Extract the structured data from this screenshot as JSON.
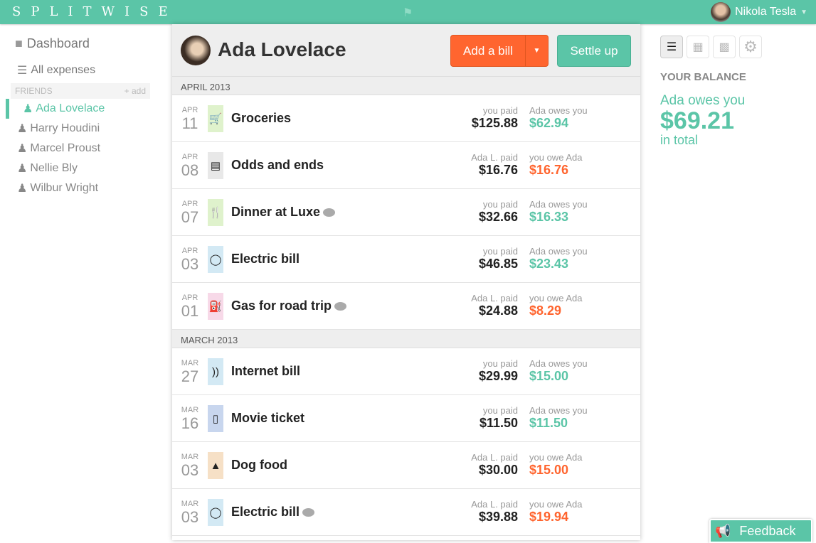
{
  "header": {
    "logo": "SPLITWISE",
    "user": "Nikola Tesla"
  },
  "sidebar": {
    "dashboard": "Dashboard",
    "all_expenses": "All expenses",
    "friends_label": "FRIENDS",
    "add_label": "add",
    "friends": [
      "Ada Lovelace",
      "Harry Houdini",
      "Marcel Proust",
      "Nellie Bly",
      "Wilbur Wright"
    ]
  },
  "main": {
    "title": "Ada Lovelace",
    "add_bill": "Add a bill",
    "settle_up": "Settle up",
    "sections": [
      {
        "label": "APRIL 2013",
        "items": [
          {
            "month": "APR",
            "day": "11",
            "icon": "cart-icon",
            "icon_bg": "#dff2cc",
            "desc": "Groceries",
            "comment": false,
            "payer": "you paid",
            "paid": "$125.88",
            "rel": "Ada owes you",
            "amount": "$62.94",
            "type": "owed"
          },
          {
            "month": "APR",
            "day": "08",
            "icon": "receipt-icon",
            "icon_bg": "#e8e8e8",
            "desc": "Odds and ends",
            "comment": false,
            "payer": "Ada L. paid",
            "paid": "$16.76",
            "rel": "you owe Ada",
            "amount": "$16.76",
            "type": "owe"
          },
          {
            "month": "APR",
            "day": "07",
            "icon": "fork-knife-icon",
            "icon_bg": "#dff2cc",
            "desc": "Dinner at Luxe",
            "comment": true,
            "payer": "you paid",
            "paid": "$32.66",
            "rel": "Ada owes you",
            "amount": "$16.33",
            "type": "owed"
          },
          {
            "month": "APR",
            "day": "03",
            "icon": "lightbulb-icon",
            "icon_bg": "#d3e9f4",
            "desc": "Electric bill",
            "comment": false,
            "payer": "you paid",
            "paid": "$46.85",
            "rel": "Ada owes you",
            "amount": "$23.43",
            "type": "owed"
          },
          {
            "month": "APR",
            "day": "01",
            "icon": "gas-pump-icon",
            "icon_bg": "#f7d9e8",
            "desc": "Gas for road trip",
            "comment": true,
            "payer": "Ada L. paid",
            "paid": "$24.88",
            "rel": "you owe Ada",
            "amount": "$8.29",
            "type": "owe"
          }
        ]
      },
      {
        "label": "MARCH 2013",
        "items": [
          {
            "month": "MAR",
            "day": "27",
            "icon": "wifi-icon",
            "icon_bg": "#d3e9f4",
            "desc": "Internet bill",
            "comment": false,
            "payer": "you paid",
            "paid": "$29.99",
            "rel": "Ada owes you",
            "amount": "$15.00",
            "type": "owed"
          },
          {
            "month": "MAR",
            "day": "16",
            "icon": "ticket-icon",
            "icon_bg": "#c8d6ee",
            "desc": "Movie ticket",
            "comment": false,
            "payer": "you paid",
            "paid": "$11.50",
            "rel": "Ada owes you",
            "amount": "$11.50",
            "type": "owed"
          },
          {
            "month": "MAR",
            "day": "03",
            "icon": "dog-icon",
            "icon_bg": "#f6e0c6",
            "desc": "Dog food",
            "comment": false,
            "payer": "Ada L. paid",
            "paid": "$30.00",
            "rel": "you owe Ada",
            "amount": "$15.00",
            "type": "owe"
          },
          {
            "month": "MAR",
            "day": "03",
            "icon": "lightbulb-icon",
            "icon_bg": "#d3e9f4",
            "desc": "Electric bill",
            "comment": true,
            "payer": "Ada L. paid",
            "paid": "$39.88",
            "rel": "you owe Ada",
            "amount": "$19.94",
            "type": "owe"
          }
        ]
      }
    ]
  },
  "balance": {
    "heading": "YOUR BALANCE",
    "text": "Ada owes you",
    "amount": "$69.21",
    "suffix": "in total"
  },
  "feedback": "Feedback",
  "colors": {
    "brand": "#5bc5a7",
    "orange": "#ff652f"
  }
}
